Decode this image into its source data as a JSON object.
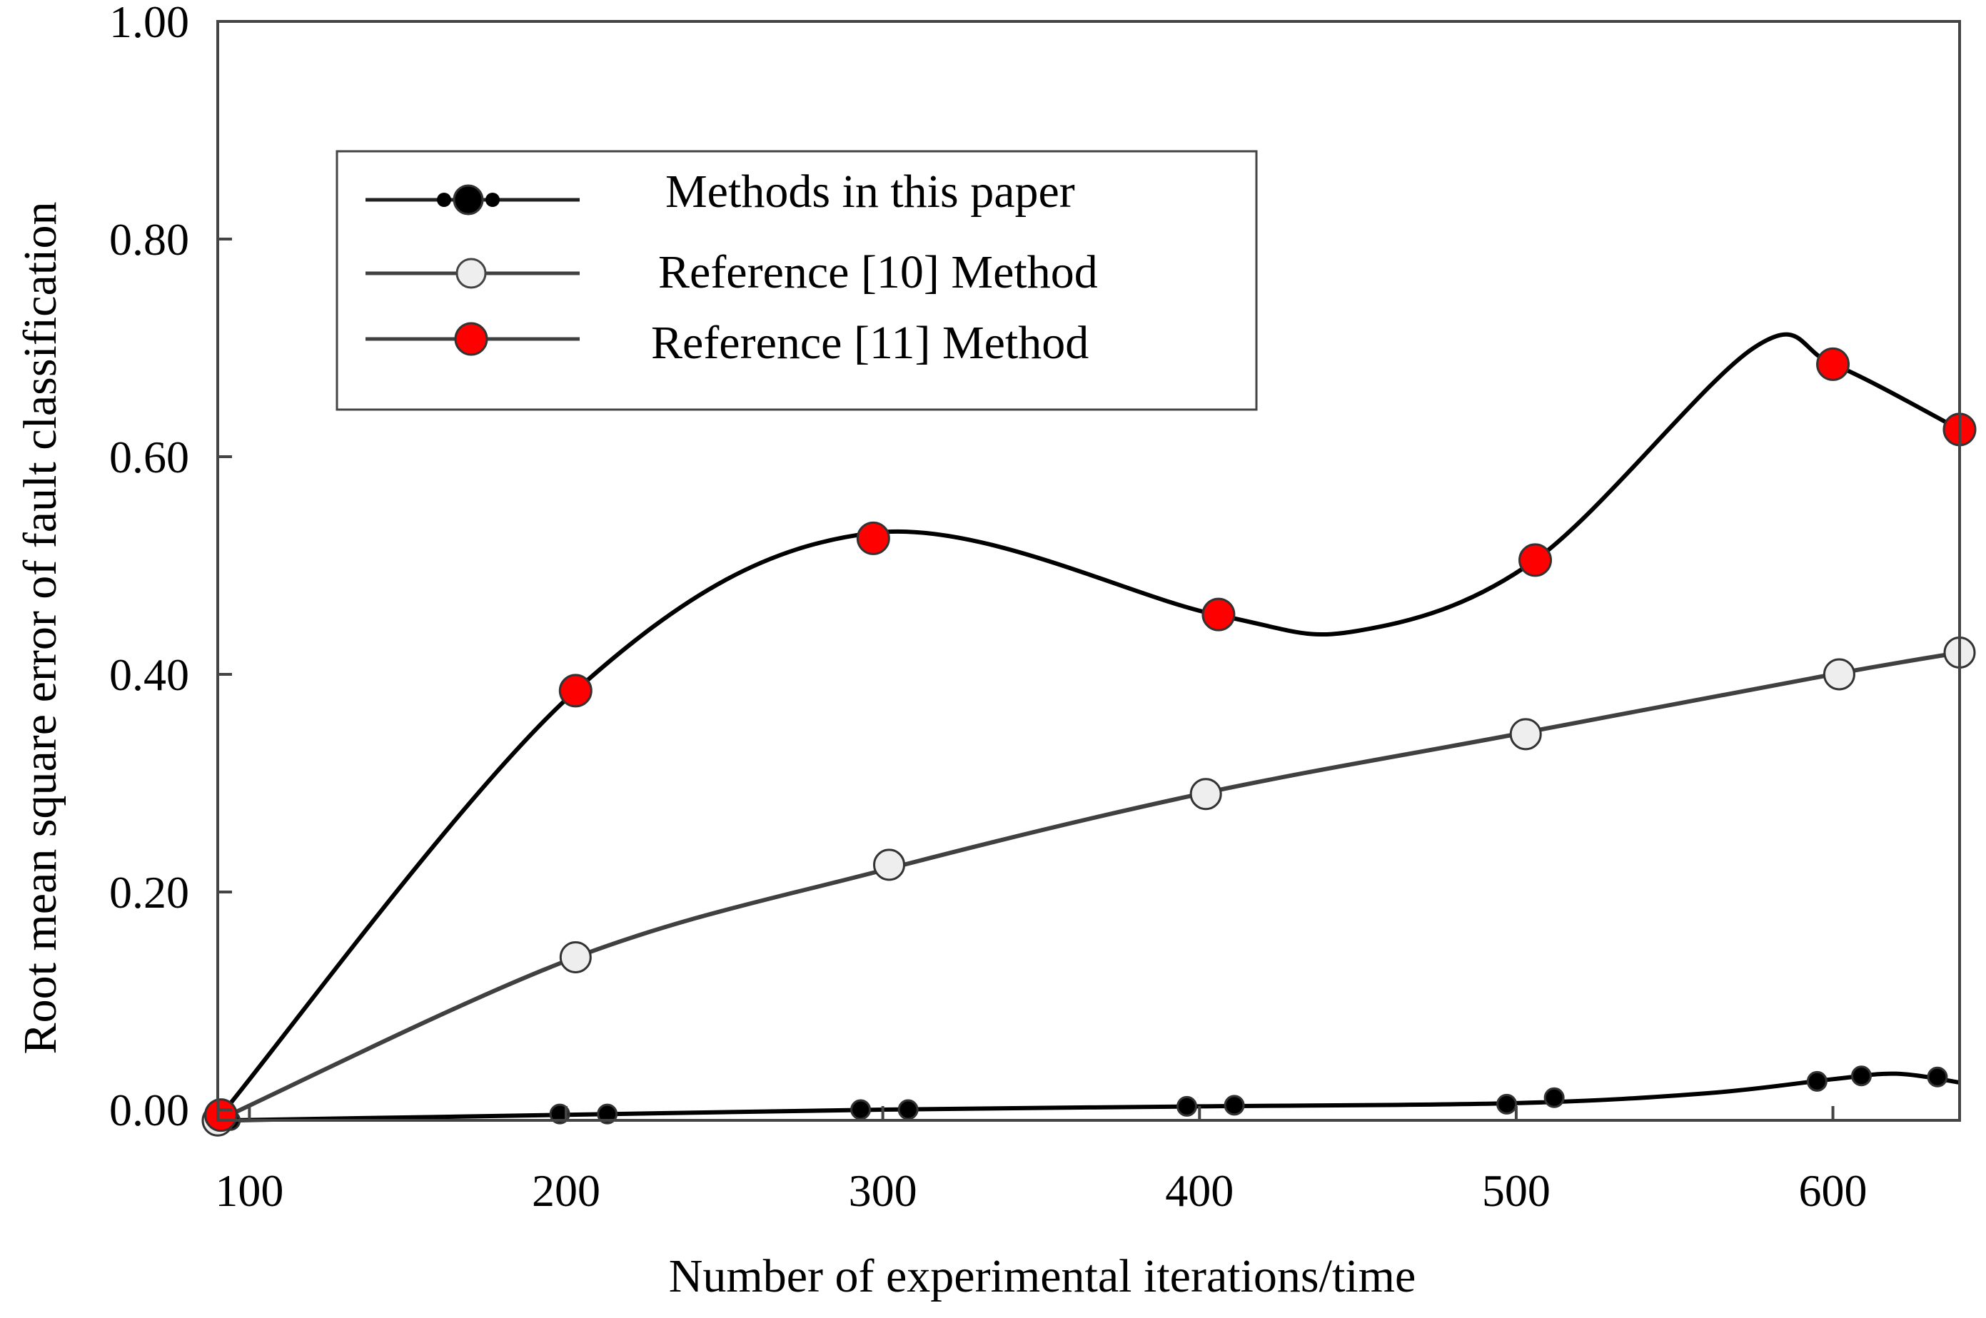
{
  "chart_data": {
    "type": "line",
    "title": "",
    "xlabel": "Number of experimental iterations/time",
    "ylabel": "Root mean square error of fault classification",
    "xlim": [
      90,
      640
    ],
    "ylim": [
      0.0,
      1.0
    ],
    "x_ticks": [
      100,
      200,
      300,
      400,
      500,
      600
    ],
    "x_tick_labels": [
      "100",
      "200",
      "300",
      "400",
      "500",
      "600"
    ],
    "y_ticks": [
      0.0,
      0.2,
      0.4,
      0.6,
      0.8,
      1.0
    ],
    "y_tick_labels": [
      "0.00",
      "0.20",
      "0.40",
      "0.60",
      "0.80",
      "1.00"
    ],
    "grid": false,
    "legend_position": "top-left",
    "series": [
      {
        "name": "Methods in this paper",
        "color": "#000000",
        "marker_fill": "#000000",
        "marker": "small-dot",
        "curve": [
          [
            90,
            -0.01
          ],
          [
            195,
            -0.005
          ],
          [
            300,
            0.0
          ],
          [
            400,
            0.003
          ],
          [
            500,
            0.006
          ],
          [
            560,
            0.015
          ],
          [
            600,
            0.028
          ],
          [
            620,
            0.033
          ],
          [
            640,
            0.025
          ]
        ],
        "points": [
          {
            "x": 94,
            "y": -0.01
          },
          {
            "x": 198,
            "y": -0.004
          },
          {
            "x": 213,
            "y": -0.004
          },
          {
            "x": 293,
            "y": 0.0
          },
          {
            "x": 308,
            "y": 0.0
          },
          {
            "x": 396,
            "y": 0.003
          },
          {
            "x": 411,
            "y": 0.004
          },
          {
            "x": 497,
            "y": 0.005
          },
          {
            "x": 512,
            "y": 0.011
          },
          {
            "x": 595,
            "y": 0.026
          },
          {
            "x": 609,
            "y": 0.031
          },
          {
            "x": 633,
            "y": 0.03
          }
        ]
      },
      {
        "name": "Reference [10] Method",
        "color": "#404040",
        "marker_fill": "#eeeeee",
        "marker": "circle",
        "curve": [
          [
            90,
            -0.01
          ],
          [
            203,
            0.14
          ],
          [
            300,
            0.22
          ],
          [
            400,
            0.29
          ],
          [
            500,
            0.345
          ],
          [
            600,
            0.4
          ],
          [
            640,
            0.42
          ]
        ],
        "points": [
          {
            "x": 90,
            "y": -0.01
          },
          {
            "x": 203,
            "y": 0.14
          },
          {
            "x": 302,
            "y": 0.225
          },
          {
            "x": 402,
            "y": 0.29
          },
          {
            "x": 503,
            "y": 0.345
          },
          {
            "x": 602,
            "y": 0.4
          },
          {
            "x": 640,
            "y": 0.42
          }
        ]
      },
      {
        "name": "Reference [11] Method",
        "color": "#000000",
        "marker_fill": "#ff0000",
        "marker": "circle",
        "curve": [
          [
            91,
            -0.005
          ],
          [
            203,
            0.385
          ],
          [
            297,
            0.53
          ],
          [
            405,
            0.455
          ],
          [
            450,
            0.44
          ],
          [
            506,
            0.505
          ],
          [
            575,
            0.7
          ],
          [
            600,
            0.685
          ],
          [
            640,
            0.625
          ]
        ],
        "points": [
          {
            "x": 91,
            "y": -0.005
          },
          {
            "x": 203,
            "y": 0.385
          },
          {
            "x": 297,
            "y": 0.525
          },
          {
            "x": 406,
            "y": 0.455
          },
          {
            "x": 506,
            "y": 0.505
          },
          {
            "x": 600,
            "y": 0.685
          },
          {
            "x": 640,
            "y": 0.625
          }
        ]
      }
    ]
  }
}
